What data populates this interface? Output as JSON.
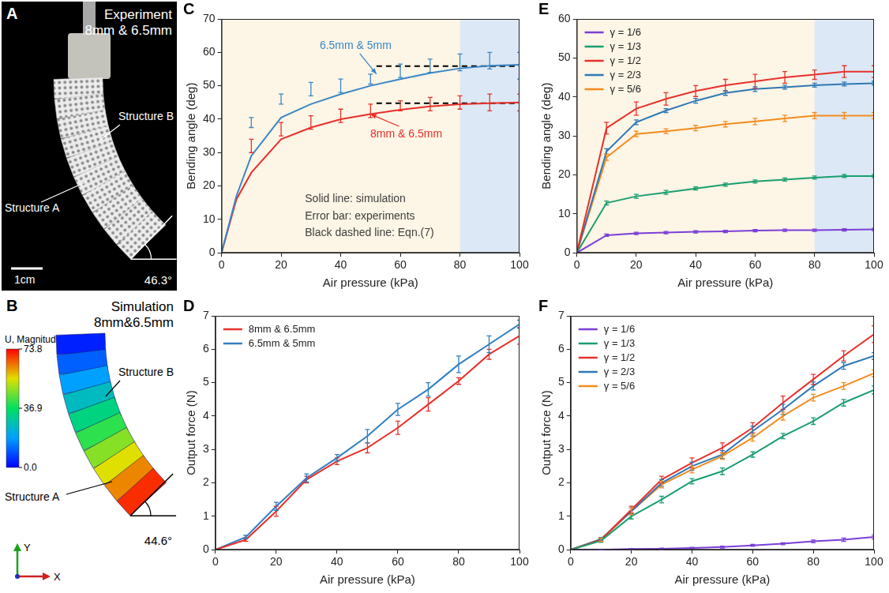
{
  "panels": [
    {
      "label": "A",
      "title": "Experiment",
      "subtitle": "8mm & 6.5mm",
      "structure_labels": [
        "Structure A",
        "Structure B"
      ],
      "scale_bar": "1cm",
      "bending_angle": {
        "value": 46.3,
        "label": "46.3°"
      }
    },
    {
      "label": "B",
      "title": "Simulation",
      "subtitle": "8mm&6.5mm",
      "structure_labels": [
        "Structure A",
        "Structure B"
      ],
      "colorbar": {
        "title": "U, Magnitude",
        "range": [
          0,
          73.8
        ],
        "ticks": [
          73.8,
          36.9,
          {
            "value": 0,
            "label": "0.0"
          }
        ]
      },
      "bending_angle": {
        "value": 44.6,
        "label": "44.6°"
      },
      "axes": [
        "Y",
        "X"
      ]
    }
  ],
  "chart_data": [
    {
      "label": "C",
      "type": "line",
      "xlabel": "Air pressure (kPa)",
      "ylabel": "Bending angle (deg)",
      "xlim": [
        0,
        100
      ],
      "xticks": [
        0,
        20,
        40,
        60,
        80,
        100
      ],
      "ylim": [
        0,
        70
      ],
      "yticks": [
        0,
        10,
        20,
        30,
        40,
        50,
        60,
        70
      ],
      "grid": false,
      "shaded_regions": [
        {
          "x": [
            0,
            80
          ],
          "color": "#fdf5e6"
        },
        {
          "x": [
            80,
            100
          ],
          "color": "#dce8f5"
        }
      ],
      "series": [
        {
          "color": "#3a87c4",
          "line_style": "solid",
          "marker": "none",
          "x": [
            0,
            5,
            10,
            20,
            30,
            40,
            50,
            60,
            70,
            80,
            90,
            100
          ],
          "values": [
            0,
            17,
            29,
            40.5,
            44.5,
            47.5,
            50,
            52,
            53.8,
            55.2,
            56,
            56.3
          ]
        },
        {
          "color": "#e8302a",
          "line_style": "solid",
          "marker": "none",
          "x": [
            0,
            5,
            10,
            20,
            30,
            40,
            50,
            60,
            70,
            80,
            90,
            100
          ],
          "values": [
            0,
            16,
            24,
            34,
            37.5,
            40,
            41.5,
            42.8,
            43.8,
            44.5,
            44.8,
            45
          ]
        },
        {
          "color": "#3a87c4",
          "line_style": "none",
          "marker": "none",
          "x": [
            10,
            20,
            30,
            40,
            50,
            60,
            70,
            80,
            90,
            100
          ],
          "values": [
            39,
            46,
            49,
            50,
            52,
            54.5,
            56,
            57,
            57.5,
            56
          ],
          "errors": [
            1.5,
            1.5,
            2,
            2,
            1.5,
            2,
            2,
            2.5,
            2.5,
            4
          ]
        },
        {
          "color": "#e8302a",
          "line_style": "none",
          "marker": "none",
          "x": [
            10,
            20,
            30,
            40,
            50,
            60,
            70,
            80,
            90,
            100
          ],
          "values": [
            32,
            37,
            39,
            41,
            42.5,
            44,
            44.5,
            45,
            45,
            45
          ],
          "errors": [
            2,
            2,
            2,
            2,
            2,
            1.5,
            2,
            2,
            2.5,
            2.5
          ]
        },
        {
          "color": "#000000",
          "line_style": "dashed",
          "marker": "none",
          "x": [
            52,
            100
          ],
          "values": [
            55.9,
            55.9
          ]
        },
        {
          "color": "#000000",
          "line_style": "dashed",
          "marker": "none",
          "x": [
            52,
            100
          ],
          "values": [
            44.8,
            44.8
          ]
        }
      ],
      "annotations": [
        {
          "text": "6.5mm & 5mm",
          "x": 45,
          "y": 62,
          "color": "#3a87c4",
          "arrow_to": [
            52,
            53.5
          ]
        },
        {
          "text": "8mm & 6.5mm",
          "x": 62,
          "y": 35.5,
          "color": "#e8302a",
          "arrow_to": [
            50,
            41.5
          ]
        },
        {
          "text": "Solid line: simulation",
          "x": 28,
          "y": 16,
          "color": "#404040"
        },
        {
          "text": "Error bar: experiments",
          "x": 28,
          "y": 11,
          "color": "#404040"
        },
        {
          "text": "Black dashed line: Eqn.(7)",
          "x": 28,
          "y": 6,
          "color": "#404040"
        }
      ]
    },
    {
      "label": "D",
      "type": "line",
      "xlabel": "Air pressure (kPa)",
      "ylabel": "Output force (N)",
      "xlim": [
        0,
        100
      ],
      "xticks": [
        0,
        20,
        40,
        60,
        80,
        100
      ],
      "ylim": [
        0,
        7
      ],
      "yticks": [
        0,
        1,
        2,
        3,
        4,
        5,
        6,
        7
      ],
      "grid": false,
      "legend": "upper left",
      "series": [
        {
          "name": "8mm & 6.5mm",
          "color": "#e8302a",
          "line_style": "solid",
          "marker": "none",
          "x": [
            0,
            10,
            20,
            30,
            40,
            50,
            60,
            70,
            80,
            90,
            100
          ],
          "values": [
            0,
            0.3,
            1.15,
            2.1,
            2.65,
            3.05,
            3.65,
            4.35,
            5.05,
            5.85,
            6.4
          ],
          "errors": [
            0,
            0.05,
            0.15,
            0.1,
            0.1,
            0.15,
            0.2,
            0.2,
            0.1,
            0.15,
            0.25
          ]
        },
        {
          "name": "6.5mm & 5mm",
          "color": "#2f7fc1",
          "line_style": "solid",
          "marker": "none",
          "x": [
            0,
            10,
            20,
            30,
            40,
            50,
            60,
            70,
            80,
            90,
            100
          ],
          "values": [
            0,
            0.38,
            1.3,
            2.15,
            2.75,
            3.4,
            4.2,
            4.8,
            5.55,
            6.15,
            6.75
          ],
          "errors": [
            0,
            0.05,
            0.12,
            0.12,
            0.1,
            0.2,
            0.18,
            0.2,
            0.25,
            0.25,
            0.12
          ]
        }
      ]
    },
    {
      "label": "E",
      "type": "line",
      "xlabel": "Air pressure (kPa)",
      "ylabel": "Bending angle (deg)",
      "xlim": [
        0,
        100
      ],
      "xticks": [
        0,
        20,
        40,
        60,
        80,
        100
      ],
      "ylim": [
        0,
        60
      ],
      "yticks": [
        0,
        10,
        20,
        30,
        40,
        50,
        60
      ],
      "grid": false,
      "legend": "upper left",
      "shaded_regions": [
        {
          "x": [
            0,
            80
          ],
          "color": "#fdf5e6"
        },
        {
          "x": [
            80,
            100
          ],
          "color": "#dce8f5"
        }
      ],
      "series": [
        {
          "name": "γ = 1/6",
          "color": "#7b3fd6",
          "line_style": "solid",
          "marker": "none",
          "x": [
            0,
            10,
            20,
            30,
            40,
            50,
            60,
            70,
            80,
            90,
            100
          ],
          "values": [
            0,
            4.5,
            5,
            5.2,
            5.4,
            5.5,
            5.7,
            5.8,
            5.8,
            5.9,
            6.0
          ],
          "errors": [
            0,
            0.3,
            0.3,
            0.3,
            0.3,
            0.3,
            0.3,
            0.3,
            0.3,
            0.3,
            0.3
          ]
        },
        {
          "name": "γ = 1/3",
          "color": "#1a9e6e",
          "line_style": "solid",
          "marker": "none",
          "x": [
            0,
            10,
            20,
            30,
            40,
            50,
            60,
            70,
            80,
            90,
            100
          ],
          "values": [
            0,
            12.8,
            14.5,
            15.5,
            16.5,
            17.5,
            18.3,
            18.8,
            19.3,
            19.7,
            19.7
          ],
          "errors": [
            0,
            0.5,
            0.5,
            0.5,
            0.4,
            0.4,
            0.4,
            0.4,
            0.4,
            0.4,
            0.4
          ]
        },
        {
          "name": "γ = 1/2",
          "color": "#e8302a",
          "line_style": "solid",
          "marker": "none",
          "x": [
            0,
            10,
            20,
            30,
            40,
            50,
            60,
            70,
            80,
            90,
            100
          ],
          "values": [
            0,
            32,
            37,
            39.5,
            41.5,
            43,
            44,
            45,
            45.7,
            46.5,
            46.5
          ],
          "errors": [
            0,
            1.5,
            1.7,
            1.6,
            1.4,
            1.5,
            1.8,
            1.5,
            1.2,
            1.5,
            1.5
          ]
        },
        {
          "name": "γ = 2/3",
          "color": "#2f78b5",
          "line_style": "solid",
          "marker": "none",
          "x": [
            0,
            10,
            20,
            30,
            40,
            50,
            60,
            70,
            80,
            90,
            100
          ],
          "values": [
            0,
            26,
            33.5,
            36.5,
            39,
            41,
            42,
            42.5,
            43,
            43.3,
            43.5
          ],
          "errors": [
            0,
            0.7,
            0.6,
            0.5,
            0.6,
            0.6,
            0.6,
            0.5,
            0.5,
            0.5,
            0.5
          ]
        },
        {
          "name": "γ = 5/6",
          "color": "#f28c1e",
          "line_style": "solid",
          "marker": "none",
          "x": [
            0,
            10,
            20,
            30,
            40,
            50,
            60,
            70,
            80,
            90,
            100
          ],
          "values": [
            0,
            24.5,
            30.5,
            31.2,
            32,
            33,
            33.7,
            34.5,
            35.2,
            35.2,
            35.2
          ],
          "errors": [
            0,
            0.8,
            0.7,
            0.6,
            0.7,
            0.7,
            0.8,
            0.8,
            0.8,
            0.8,
            0.8
          ]
        }
      ]
    },
    {
      "label": "F",
      "type": "line",
      "xlabel": "Air pressure (kPa)",
      "ylabel": "Output force (N)",
      "xlim": [
        0,
        100
      ],
      "xticks": [
        0,
        20,
        40,
        60,
        80,
        100
      ],
      "ylim": [
        0,
        7
      ],
      "yticks": [
        0,
        1,
        2,
        3,
        4,
        5,
        6,
        7
      ],
      "grid": false,
      "legend": "upper left",
      "series": [
        {
          "name": "γ = 1/6",
          "color": "#7b3fd6",
          "line_style": "solid",
          "marker": "none",
          "x": [
            0,
            10,
            20,
            30,
            40,
            50,
            60,
            70,
            80,
            90,
            100
          ],
          "values": [
            0,
            0,
            0.02,
            0.03,
            0.05,
            0.08,
            0.13,
            0.18,
            0.25,
            0.3,
            0.38
          ],
          "errors": [
            0,
            0.01,
            0.01,
            0.02,
            0.02,
            0.03,
            0.03,
            0.03,
            0.04,
            0.05,
            0.06
          ]
        },
        {
          "name": "γ = 1/3",
          "color": "#1a9e6e",
          "line_style": "solid",
          "marker": "none",
          "x": [
            0,
            10,
            20,
            30,
            40,
            50,
            60,
            70,
            80,
            90,
            100
          ],
          "values": [
            0,
            0.27,
            1.0,
            1.5,
            2.05,
            2.35,
            2.85,
            3.4,
            3.85,
            4.4,
            4.78
          ],
          "errors": [
            0,
            0.05,
            0.08,
            0.1,
            0.08,
            0.1,
            0.08,
            0.08,
            0.1,
            0.1,
            0.12
          ]
        },
        {
          "name": "γ = 1/2",
          "color": "#e8302a",
          "line_style": "solid",
          "marker": "none",
          "x": [
            0,
            10,
            20,
            30,
            40,
            50,
            60,
            70,
            80,
            90,
            100
          ],
          "values": [
            0,
            0.3,
            1.2,
            2.1,
            2.6,
            3.05,
            3.65,
            4.4,
            5.1,
            5.8,
            6.45
          ],
          "errors": [
            0,
            0.05,
            0.1,
            0.1,
            0.15,
            0.15,
            0.15,
            0.2,
            0.15,
            0.15,
            0.25
          ]
        },
        {
          "name": "γ = 2/3",
          "color": "#2f78b5",
          "line_style": "solid",
          "marker": "none",
          "x": [
            0,
            10,
            20,
            30,
            40,
            50,
            60,
            70,
            80,
            90,
            100
          ],
          "values": [
            0,
            0.32,
            1.15,
            2.0,
            2.5,
            2.85,
            3.55,
            4.2,
            4.9,
            5.5,
            5.8
          ],
          "errors": [
            0,
            0.05,
            0.1,
            0.1,
            0.12,
            0.12,
            0.15,
            0.15,
            0.12,
            0.1,
            0.1
          ]
        },
        {
          "name": "γ = 5/6",
          "color": "#f28c1e",
          "line_style": "solid",
          "marker": "none",
          "x": [
            0,
            10,
            20,
            30,
            40,
            50,
            60,
            70,
            80,
            90,
            100
          ],
          "values": [
            0,
            0.3,
            1.15,
            1.95,
            2.4,
            2.8,
            3.35,
            4.0,
            4.55,
            4.9,
            5.28
          ],
          "errors": [
            0,
            0.05,
            0.1,
            0.1,
            0.1,
            0.1,
            0.1,
            0.12,
            0.1,
            0.1,
            0.1
          ]
        }
      ]
    }
  ]
}
